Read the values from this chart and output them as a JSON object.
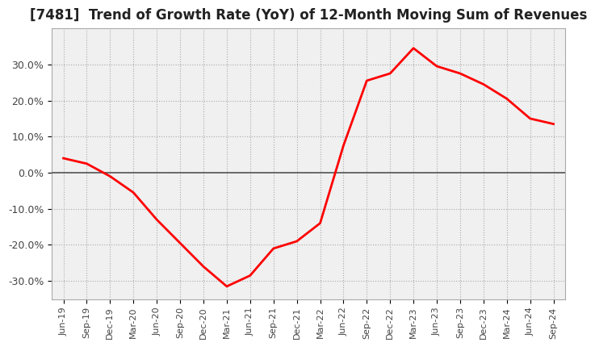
{
  "title": "[7481]  Trend of Growth Rate (YoY) of 12-Month Moving Sum of Revenues",
  "title_fontsize": 12,
  "background_color": "#ffffff",
  "plot_bg_color": "#f0f0f0",
  "line_color": "#ff0000",
  "grid_color": "#aaaaaa",
  "zero_line_color": "#555555",
  "ylim": [
    -35,
    40
  ],
  "yticks": [
    -30,
    -20,
    -10,
    0,
    10,
    20,
    30
  ],
  "ytick_labels": [
    "-30.0%",
    "-20.0%",
    "-10.0%",
    "0.0%",
    "10.0%",
    "20.0%",
    "30.0%"
  ],
  "dates": [
    "Jun-19",
    "Sep-19",
    "Dec-19",
    "Mar-20",
    "Jun-20",
    "Sep-20",
    "Dec-20",
    "Mar-21",
    "Jun-21",
    "Sep-21",
    "Dec-21",
    "Mar-22",
    "Jun-22",
    "Sep-22",
    "Dec-22",
    "Mar-23",
    "Jun-23",
    "Sep-23",
    "Dec-23",
    "Mar-24",
    "Jun-24",
    "Sep-24"
  ],
  "values": [
    4.0,
    2.5,
    -1.0,
    -5.5,
    -13.0,
    -19.5,
    -26.0,
    -31.5,
    -28.5,
    -21.0,
    -19.0,
    -14.0,
    7.5,
    25.5,
    27.5,
    34.5,
    29.5,
    27.5,
    24.5,
    20.5,
    15.0,
    13.5
  ]
}
